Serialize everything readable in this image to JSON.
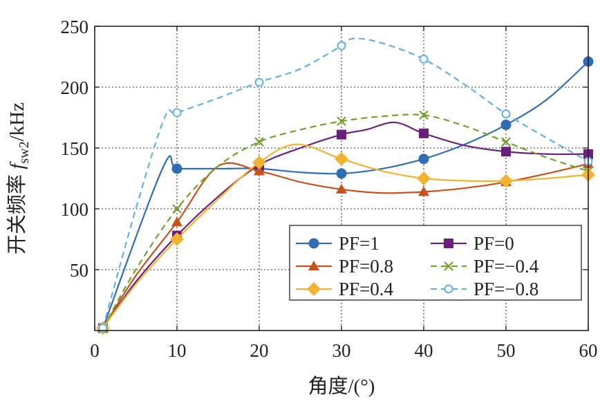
{
  "chart_data": {
    "type": "line",
    "title": "",
    "xlabel": "角度/(°)",
    "ylabel": {
      "prefix": "开关频率 ",
      "symbol": "f",
      "subscript": "sw2",
      "unit": "/kHz"
    },
    "xlim": [
      0,
      60
    ],
    "ylim": [
      0,
      250
    ],
    "xticks": [
      0,
      10,
      20,
      30,
      40,
      50,
      60
    ],
    "yticks": [
      50,
      100,
      150,
      200,
      250
    ],
    "grid": true,
    "legend_position": "bottom-right",
    "series": [
      {
        "name": "PF=1",
        "color": "#2f6db4",
        "marker": "circle",
        "dash": "solid",
        "x": [
          1,
          10,
          20,
          30,
          40,
          50,
          60
        ],
        "y": [
          2,
          133,
          133,
          129,
          141,
          169,
          221
        ],
        "curve": [
          [
            1,
            2
          ],
          [
            8.3,
            134
          ],
          [
            10,
            133
          ],
          [
            15,
            133
          ],
          [
            20,
            133
          ],
          [
            25,
            130
          ],
          [
            30,
            129
          ],
          [
            35,
            133
          ],
          [
            40,
            141
          ],
          [
            45,
            153
          ],
          [
            50,
            169
          ],
          [
            55,
            190
          ],
          [
            60,
            221
          ]
        ]
      },
      {
        "name": "PF=0",
        "color": "#6b1f7c",
        "marker": "square",
        "dash": "solid",
        "x": [
          1,
          10,
          20,
          30,
          40,
          50,
          60
        ],
        "y": [
          2,
          78,
          136,
          161,
          162,
          147,
          145
        ],
        "curve": [
          [
            1,
            2
          ],
          [
            5,
            40
          ],
          [
            10,
            78
          ],
          [
            15,
            110
          ],
          [
            20,
            136
          ],
          [
            25,
            150
          ],
          [
            30,
            161
          ],
          [
            33,
            165
          ],
          [
            36.5,
            171
          ],
          [
            40,
            162
          ],
          [
            45,
            152
          ],
          [
            50,
            147
          ],
          [
            55,
            145
          ],
          [
            60,
            145
          ]
        ]
      },
      {
        "name": "PF=0.8",
        "color": "#c8501c",
        "marker": "triangle",
        "dash": "solid",
        "x": [
          1,
          10,
          20,
          30,
          40,
          50,
          60
        ],
        "y": [
          2,
          89,
          131,
          116,
          114,
          122,
          137
        ],
        "curve": [
          [
            1,
            2
          ],
          [
            5,
            45
          ],
          [
            10,
            89
          ],
          [
            15,
            135
          ],
          [
            20,
            131
          ],
          [
            25,
            122
          ],
          [
            30,
            116
          ],
          [
            35,
            113
          ],
          [
            40,
            114
          ],
          [
            45,
            117
          ],
          [
            50,
            122
          ],
          [
            55,
            129
          ],
          [
            60,
            137
          ]
        ]
      },
      {
        "name": "PF=−0.4",
        "color": "#75a12b",
        "marker": "x",
        "dash": "dashed",
        "x": [
          1,
          10,
          20,
          30,
          40,
          50,
          60
        ],
        "y": [
          2,
          100,
          155,
          172,
          177,
          155,
          131
        ],
        "curve": [
          [
            1,
            2
          ],
          [
            5,
            50
          ],
          [
            10,
            100
          ],
          [
            15,
            135
          ],
          [
            20,
            155
          ],
          [
            25,
            165
          ],
          [
            30,
            172
          ],
          [
            35,
            176
          ],
          [
            40,
            177
          ],
          [
            45,
            168
          ],
          [
            50,
            155
          ],
          [
            55,
            142
          ],
          [
            60,
            131
          ]
        ]
      },
      {
        "name": "PF=0.4",
        "color": "#f0b430",
        "marker": "diamond",
        "dash": "solid",
        "x": [
          1,
          10,
          20,
          30,
          40,
          50,
          60
        ],
        "y": [
          2,
          75,
          138,
          141,
          125,
          123,
          128
        ],
        "curve": [
          [
            1,
            2
          ],
          [
            5,
            38
          ],
          [
            10,
            75
          ],
          [
            15,
            108
          ],
          [
            20,
            138
          ],
          [
            24.5,
            153
          ],
          [
            30,
            141
          ],
          [
            35,
            131
          ],
          [
            40,
            125
          ],
          [
            45,
            123
          ],
          [
            50,
            123
          ],
          [
            55,
            125
          ],
          [
            60,
            128
          ]
        ]
      },
      {
        "name": "PF=−0.8",
        "color": "#62b0e2",
        "marker": "open-circle",
        "dash": "dashed",
        "x": [
          1,
          10,
          20,
          30,
          40,
          50,
          60
        ],
        "y": [
          2,
          179,
          204,
          234,
          223,
          178,
          139
        ],
        "curve": [
          [
            1,
            2
          ],
          [
            5,
            100
          ],
          [
            8.5,
            175
          ],
          [
            10,
            179
          ],
          [
            15,
            191
          ],
          [
            20,
            204
          ],
          [
            25,
            215
          ],
          [
            30,
            234
          ],
          [
            31.5,
            240
          ],
          [
            35,
            236
          ],
          [
            40,
            223
          ],
          [
            45,
            202
          ],
          [
            50,
            178
          ],
          [
            55,
            158
          ],
          [
            60,
            139
          ]
        ]
      }
    ]
  }
}
